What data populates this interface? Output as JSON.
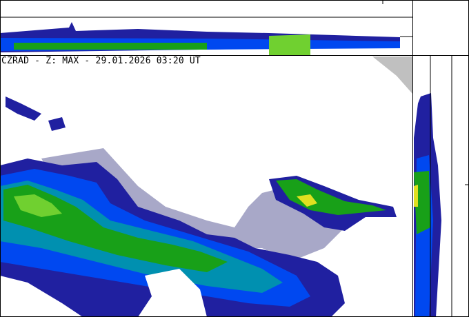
{
  "title": "CZRAD - Z: MAX - 29.01.2026 03:20 UT",
  "colors": {
    "background": "#ffffff",
    "frame": "#000000",
    "no_coverage": "#c0c0c0",
    "weak_echo": "#a8a8c8",
    "dark_blue": "#2020a0",
    "blue": "#0048f0",
    "cyan": "#0090b0",
    "green": "#18a018",
    "light_green": "#70d030",
    "yellow": "#e0e020"
  }
}
